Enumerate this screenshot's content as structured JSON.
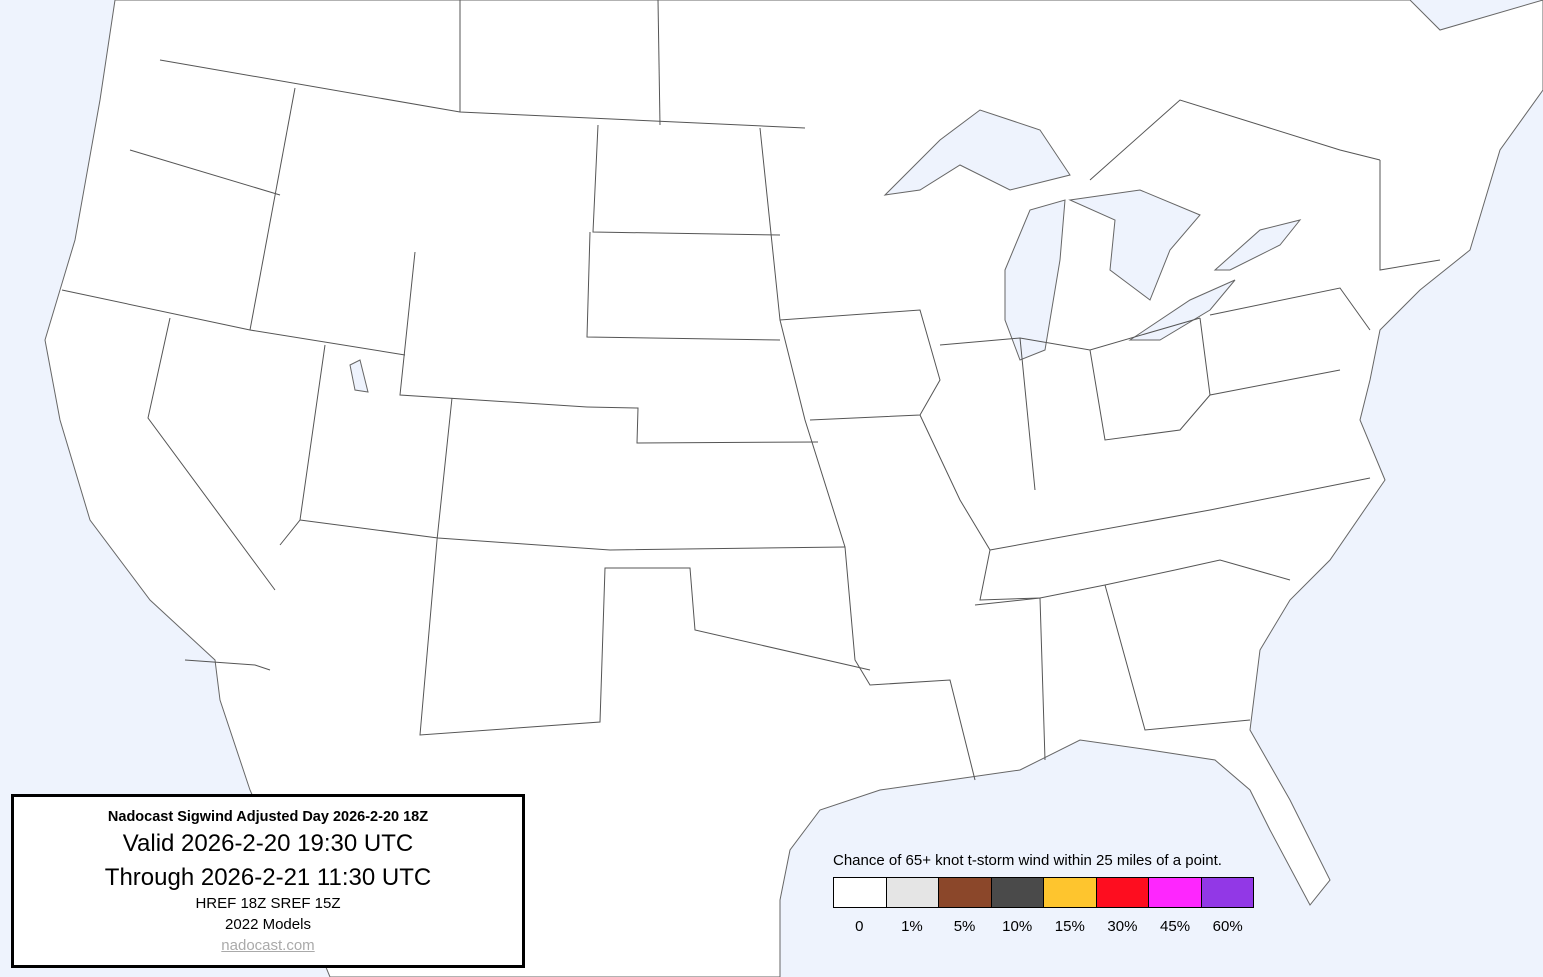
{
  "title_box": {
    "title": "Nadocast Sigwind Adjusted Day 2026-2-20 18Z",
    "valid": "Valid 2026-2-20 19:30 UTC",
    "through": "Through 2026-2-21 11:30 UTC",
    "models_run": "HREF 18Z SREF 15Z",
    "models_version": "2022 Models",
    "link": "nadocast.com"
  },
  "legend": {
    "title": "Chance of 65+ knot t-storm wind within 25 miles of a point.",
    "items": [
      {
        "label": "0",
        "color": "#ffffff"
      },
      {
        "label": "1%",
        "color": "#e5e5e5"
      },
      {
        "label": "5%",
        "color": "#8b472a"
      },
      {
        "label": "10%",
        "color": "#4a4a4a"
      },
      {
        "label": "15%",
        "color": "#fec52e"
      },
      {
        "label": "30%",
        "color": "#fe0d1f"
      },
      {
        "label": "45%",
        "color": "#fe26fe"
      },
      {
        "label": "60%",
        "color": "#9238e6"
      }
    ]
  },
  "colors": {
    "water": "#eef3fd",
    "land": "#ffffff",
    "borders": "#555555"
  }
}
